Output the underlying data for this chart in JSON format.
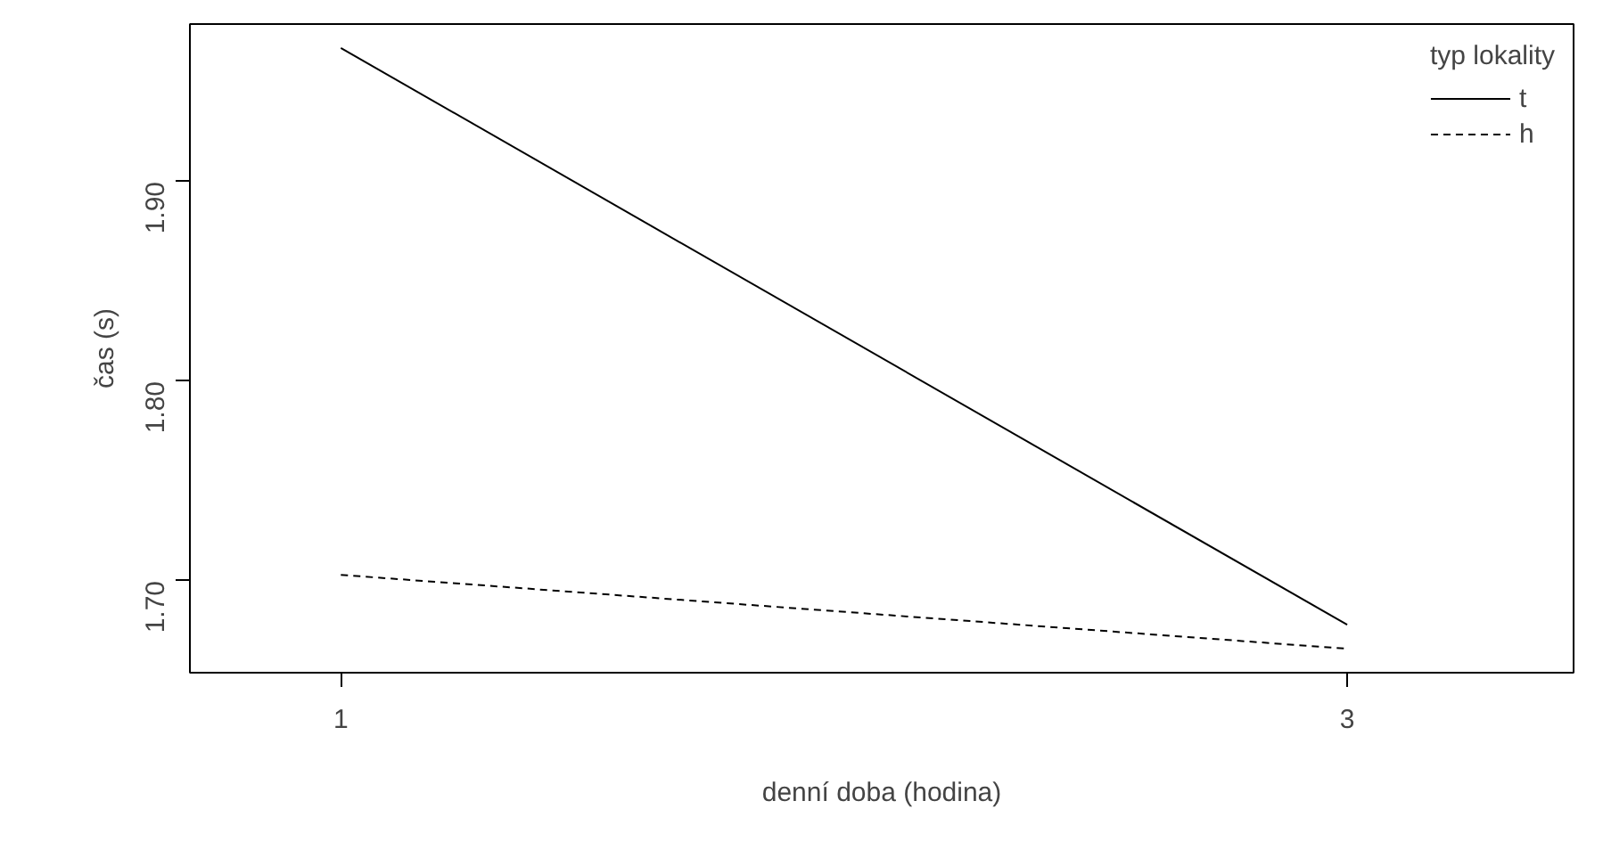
{
  "chart_data": {
    "type": "line",
    "xlabel": "denní doba (hodina)",
    "ylabel": "čas (s)",
    "legend_title": "typ lokality",
    "categories": [
      "1",
      "3"
    ],
    "series": [
      {
        "name": "t",
        "color": "#000000",
        "line_style": "solid",
        "values": [
          1.967,
          1.678
        ]
      },
      {
        "name": "h",
        "color": "#000000",
        "line_style": "dashed",
        "values": [
          1.703,
          1.666
        ]
      }
    ],
    "ylim": [
      1.654,
      1.979
    ],
    "yticks": [
      {
        "value": 1.7,
        "label": "1.70"
      },
      {
        "value": 1.8,
        "label": "1.80"
      },
      {
        "value": 1.9,
        "label": "1.90"
      }
    ],
    "grid": false,
    "legend": "top right",
    "marker": "none"
  }
}
